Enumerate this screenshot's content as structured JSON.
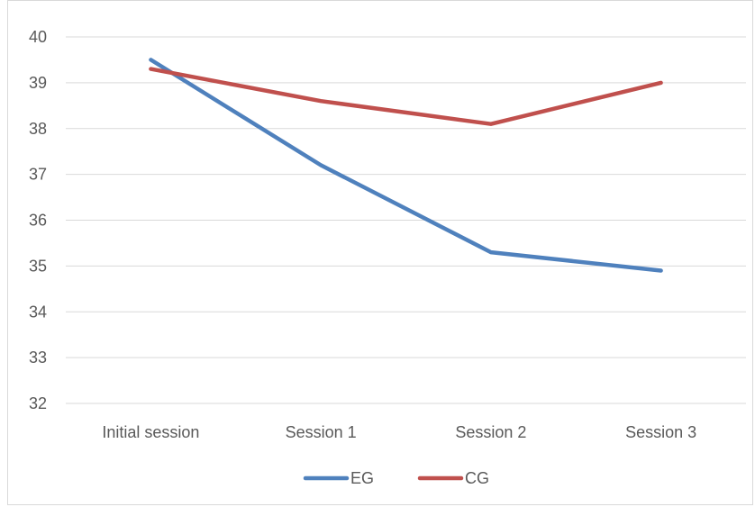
{
  "chart_data": {
    "type": "line",
    "title": "",
    "xlabel": "",
    "ylabel": "",
    "categories": [
      "Initial session",
      "Session 1",
      "Session 2",
      "Session 3"
    ],
    "ylim": [
      32,
      40
    ],
    "yticks": [
      32,
      33,
      34,
      35,
      36,
      37,
      38,
      39,
      40
    ],
    "grid": true,
    "legend_position": "bottom",
    "series": [
      {
        "name": "EG",
        "color": "#4f81bd",
        "values": [
          39.5,
          37.2,
          35.3,
          34.9
        ]
      },
      {
        "name": "CG",
        "color": "#c0504d",
        "values": [
          39.3,
          38.6,
          38.1,
          39.0
        ]
      }
    ]
  }
}
